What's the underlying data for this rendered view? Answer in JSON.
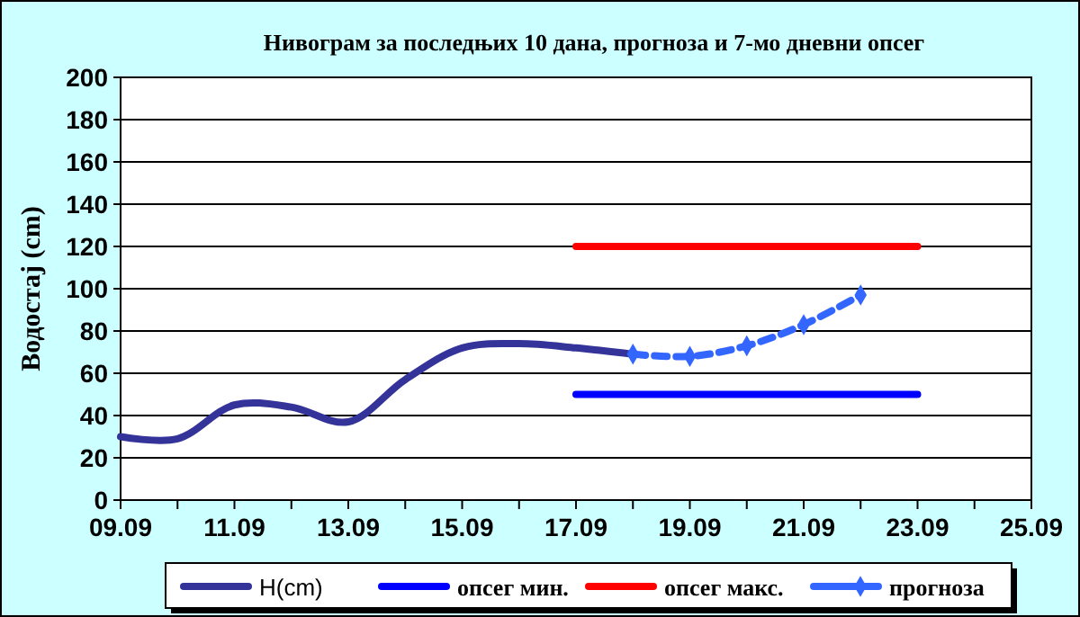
{
  "chart_data": {
    "type": "line",
    "title": "Нивограм за последњих 10 дана, прогноза и 7-мо дневни опсег",
    "ylabel": "Водостај (cm)",
    "xlim": [
      "--09-09",
      "--09-25"
    ],
    "xticks": [
      {
        "value": "--09-09",
        "label": "09.09"
      },
      {
        "value": "--09-11",
        "label": "11.09"
      },
      {
        "value": "--09-13",
        "label": "13.09"
      },
      {
        "value": "--09-15",
        "label": "15.09"
      },
      {
        "value": "--09-17",
        "label": "17.09"
      },
      {
        "value": "--09-19",
        "label": "19.09"
      },
      {
        "value": "--09-21",
        "label": "21.09"
      },
      {
        "value": "--09-23",
        "label": "23.09"
      },
      {
        "value": "--09-25",
        "label": "25.09"
      }
    ],
    "ylim": [
      0,
      200
    ],
    "yticks": [
      0,
      20,
      40,
      60,
      80,
      100,
      120,
      140,
      160,
      180,
      200
    ],
    "grid": "y",
    "legend": "bottom",
    "series": [
      {
        "name": "H(cm)",
        "color": "#333399",
        "x": [
          "--09-09",
          "--09-10",
          "--09-11",
          "--09-12",
          "--09-13",
          "--09-14",
          "--09-15",
          "--09-16",
          "--09-17",
          "--09-18"
        ],
        "values": [
          30,
          29,
          45,
          44,
          37,
          57,
          72,
          74,
          72,
          69
        ],
        "marker": "none",
        "line_style": "solid"
      },
      {
        "name": "опсег мин.",
        "color": "#0000ff",
        "x": [
          "--09-17",
          "--09-23"
        ],
        "values": [
          50,
          50
        ],
        "marker": "none",
        "line_style": "solid"
      },
      {
        "name": "опсег макс.",
        "color": "#ff0000",
        "x": [
          "--09-17",
          "--09-23"
        ],
        "values": [
          120,
          120
        ],
        "marker": "none",
        "line_style": "solid"
      },
      {
        "name": "прогноза",
        "color": "#3366ff",
        "x": [
          "--09-18",
          "--09-19",
          "--09-20",
          "--09-21",
          "--09-22"
        ],
        "values": [
          69,
          68,
          73,
          83,
          97
        ],
        "marker": "diamond",
        "line_style": "dashed"
      }
    ]
  }
}
